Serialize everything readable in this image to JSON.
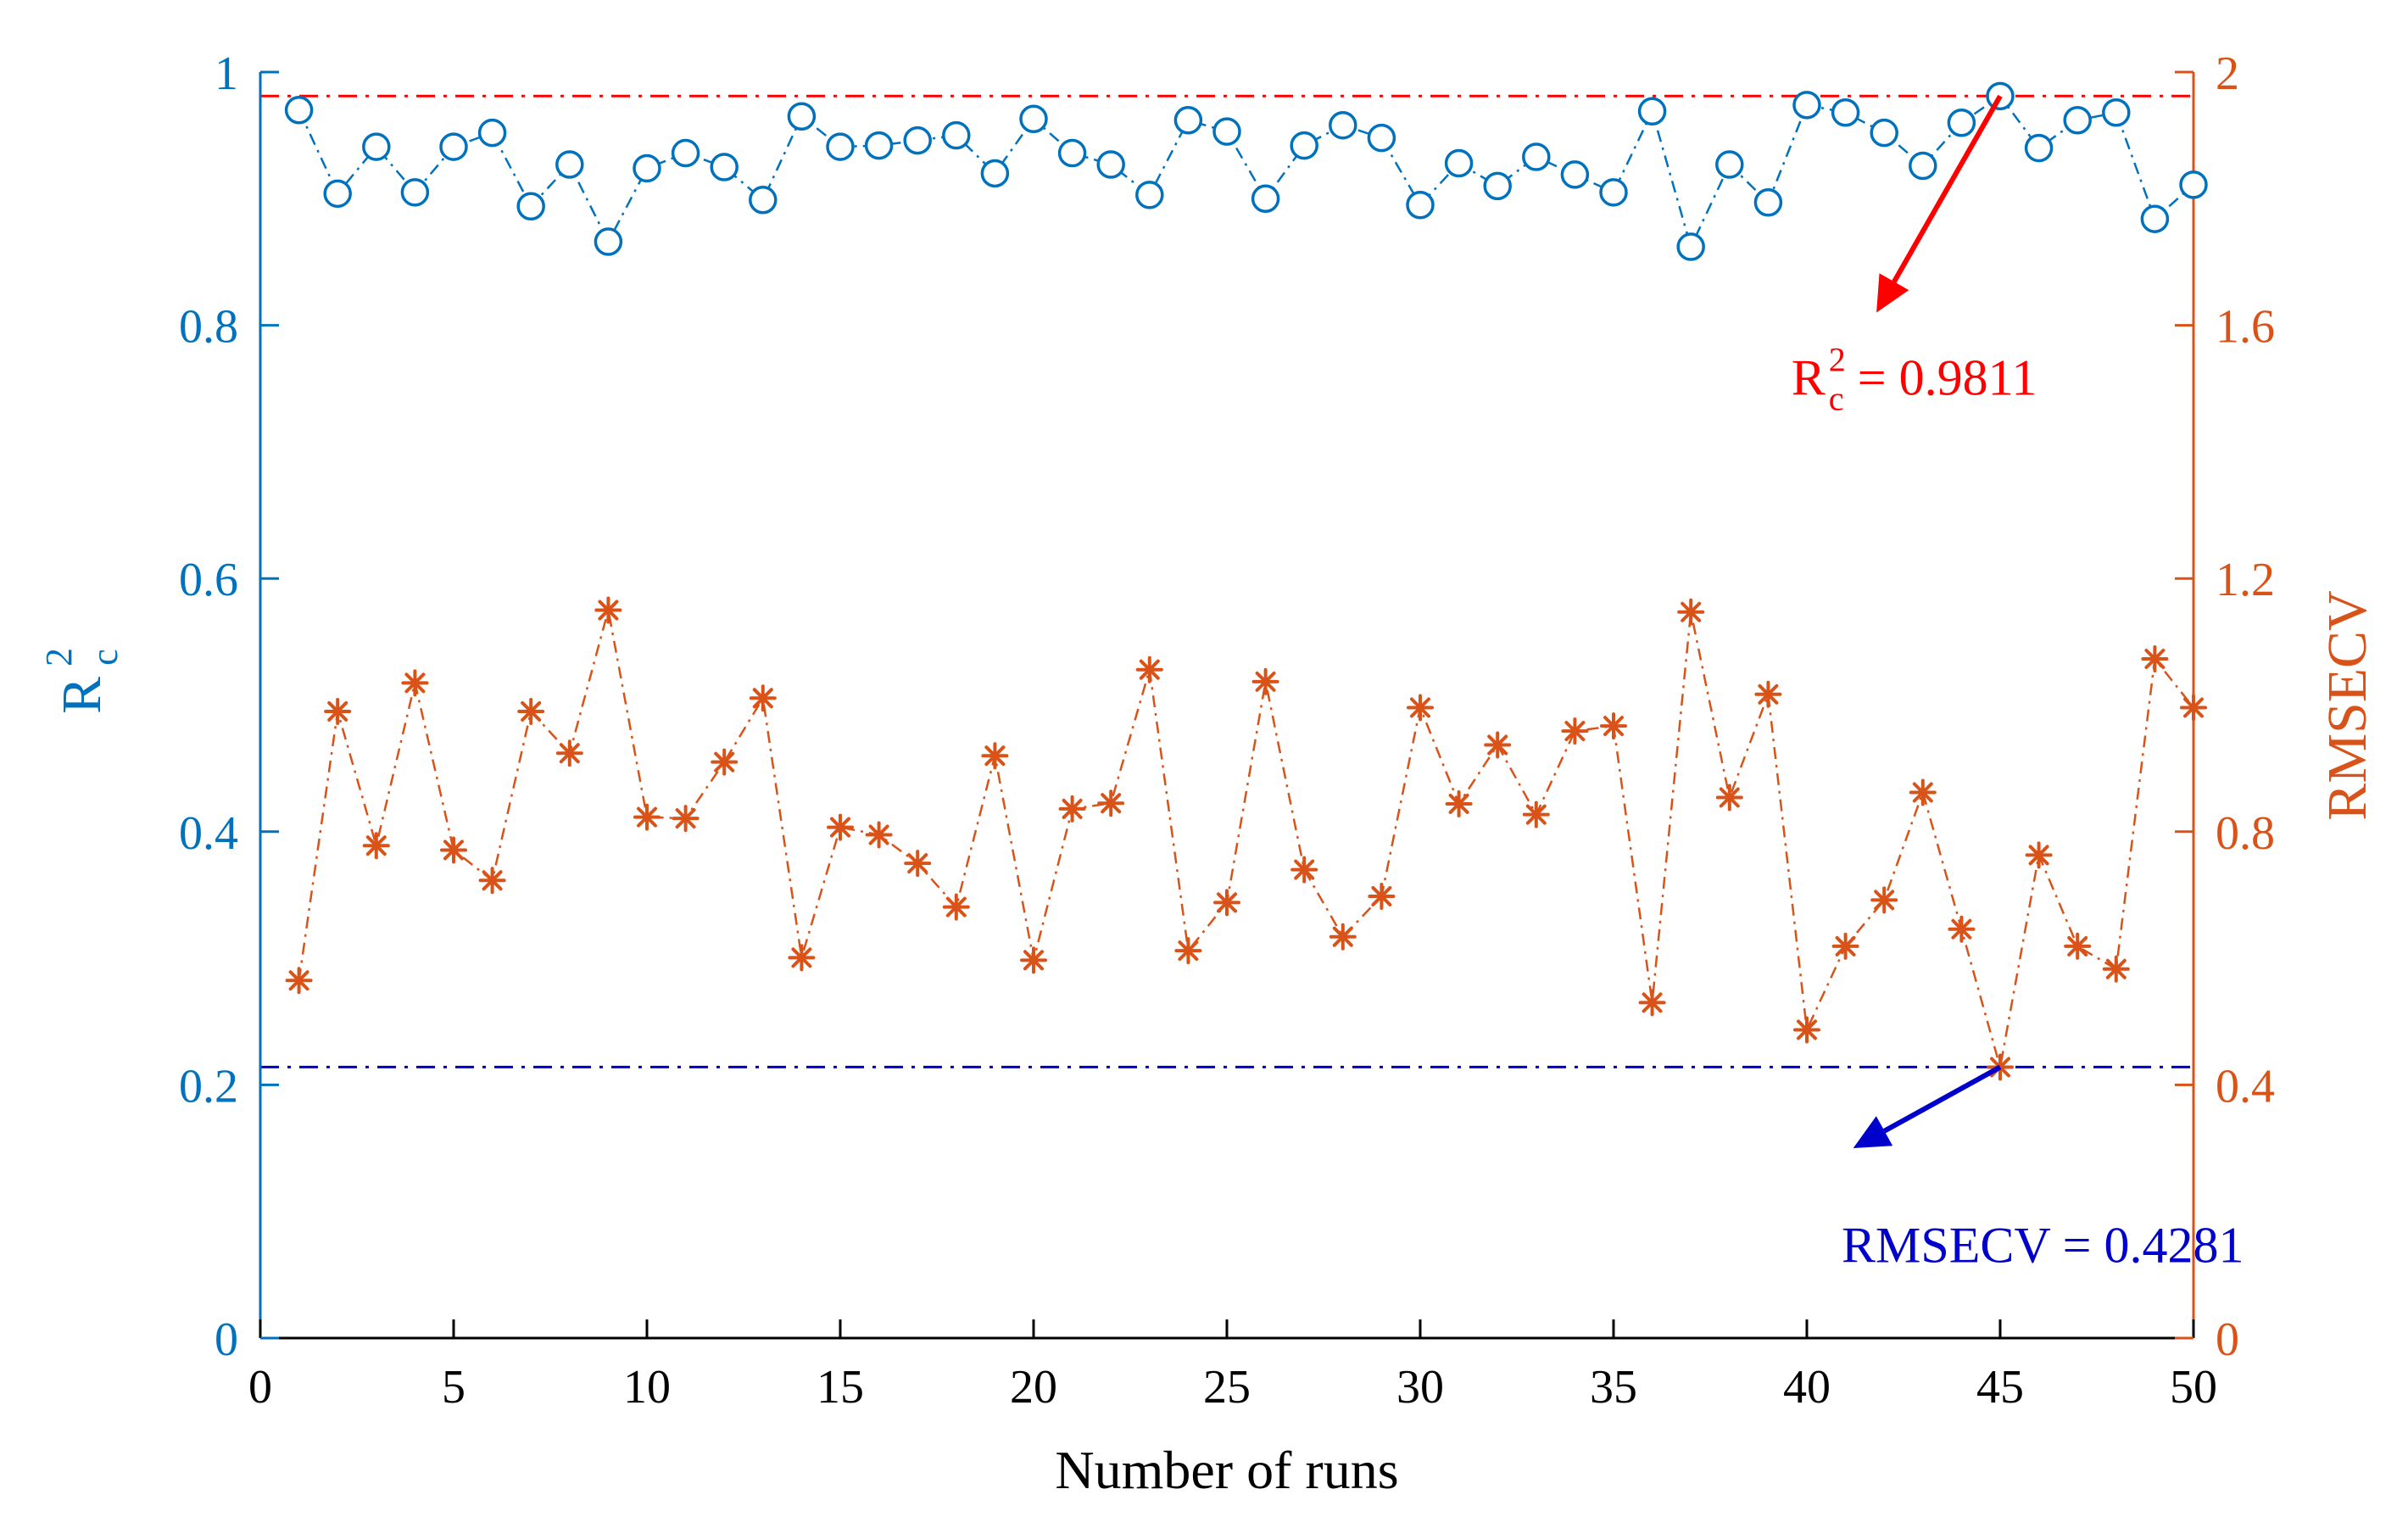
{
  "chart_data": {
    "type": "line",
    "title": "",
    "xlabel": "Number of runs",
    "xlim": [
      0,
      50
    ],
    "xticks": [
      "0",
      "5",
      "10",
      "15",
      "20",
      "25",
      "30",
      "35",
      "40",
      "45",
      "50"
    ],
    "ylabel_left": {
      "main": "R",
      "sup": "2",
      "sub": "c"
    },
    "ylim_left": [
      0,
      1
    ],
    "yticks_left": [
      "0",
      "0.2",
      "0.4",
      "0.6",
      "0.8",
      "1"
    ],
    "ylabel_right": "RMSECV",
    "ylim_right": [
      0,
      2
    ],
    "yticks_right": [
      "0",
      "0.4",
      "0.8",
      "1.2",
      "1.6",
      "2"
    ],
    "colors": {
      "axis_left": "#0072BD",
      "axis_right": "#D95319",
      "axis_bottom": "#000000",
      "ref_high": "#FF0000",
      "ref_low": "#0000CC"
    },
    "x": [
      1,
      2,
      3,
      4,
      5,
      6,
      7,
      8,
      9,
      10,
      11,
      12,
      13,
      14,
      15,
      16,
      17,
      18,
      19,
      20,
      21,
      22,
      23,
      24,
      25,
      26,
      27,
      28,
      29,
      30,
      31,
      32,
      33,
      34,
      35,
      36,
      37,
      38,
      39,
      40,
      41,
      42,
      43,
      44,
      45,
      46,
      47,
      48,
      49,
      50
    ],
    "series": [
      {
        "name": "R2c",
        "axis": "left",
        "marker": "circle",
        "color": "#0072BD",
        "values": [
          0.97,
          0.904,
          0.941,
          0.905,
          0.941,
          0.952,
          0.894,
          0.927,
          0.866,
          0.924,
          0.936,
          0.925,
          0.899,
          0.965,
          0.941,
          0.942,
          0.946,
          0.95,
          0.92,
          0.963,
          0.936,
          0.927,
          0.903,
          0.962,
          0.953,
          0.9,
          0.942,
          0.958,
          0.948,
          0.895,
          0.928,
          0.91,
          0.933,
          0.919,
          0.905,
          0.969,
          0.862,
          0.927,
          0.897,
          0.974,
          0.968,
          0.952,
          0.926,
          0.96,
          0.981,
          0.94,
          0.962,
          0.968,
          0.884,
          0.911
        ]
      },
      {
        "name": "RMSECV",
        "axis": "right",
        "marker": "asterisk",
        "color": "#D95319",
        "values": [
          0.565,
          0.99,
          0.778,
          1.035,
          0.771,
          0.723,
          0.99,
          0.924,
          1.15,
          0.823,
          0.821,
          0.91,
          1.011,
          0.601,
          0.807,
          0.795,
          0.75,
          0.681,
          0.92,
          0.597,
          0.836,
          0.845,
          1.056,
          0.612,
          0.688,
          1.037,
          0.74,
          0.634,
          0.698,
          0.996,
          0.844,
          0.937,
          0.827,
          0.959,
          0.967,
          0.53,
          1.147,
          0.854,
          1.017,
          0.487,
          0.619,
          0.692,
          0.862,
          0.646,
          0.428,
          0.763,
          0.619,
          0.583,
          1.073,
          0.996
        ]
      }
    ],
    "reference_lines": [
      {
        "axis": "left",
        "value": 0.9811,
        "color": "#FF0000",
        "style": "dash-dot"
      },
      {
        "axis": "right",
        "value": 0.4281,
        "color": "#0000CC",
        "style": "dash-dot"
      }
    ],
    "annotations": [
      {
        "id": "r2",
        "prefix": "R",
        "sup": "2",
        "sub": "c",
        "text": " = 0.9811",
        "color": "#FF0000",
        "point_x": 45,
        "point_axis": "left",
        "point_value": 0.9811,
        "arrow_to_x": 41.8,
        "arrow_to_axis": "left",
        "arrow_to_value": 0.81,
        "label_x": 39.6,
        "label_axis": "left",
        "label_value": 0.745
      },
      {
        "id": "rmse",
        "text": "RMSECV = 0.4281",
        "color": "#0000CC",
        "point_x": 45,
        "point_axis": "right",
        "point_value": 0.4281,
        "arrow_to_x": 41.2,
        "arrow_to_axis": "right",
        "arrow_to_value": 0.3,
        "label_x": 40.9,
        "label_axis": "right",
        "label_value": 0.12
      }
    ]
  }
}
